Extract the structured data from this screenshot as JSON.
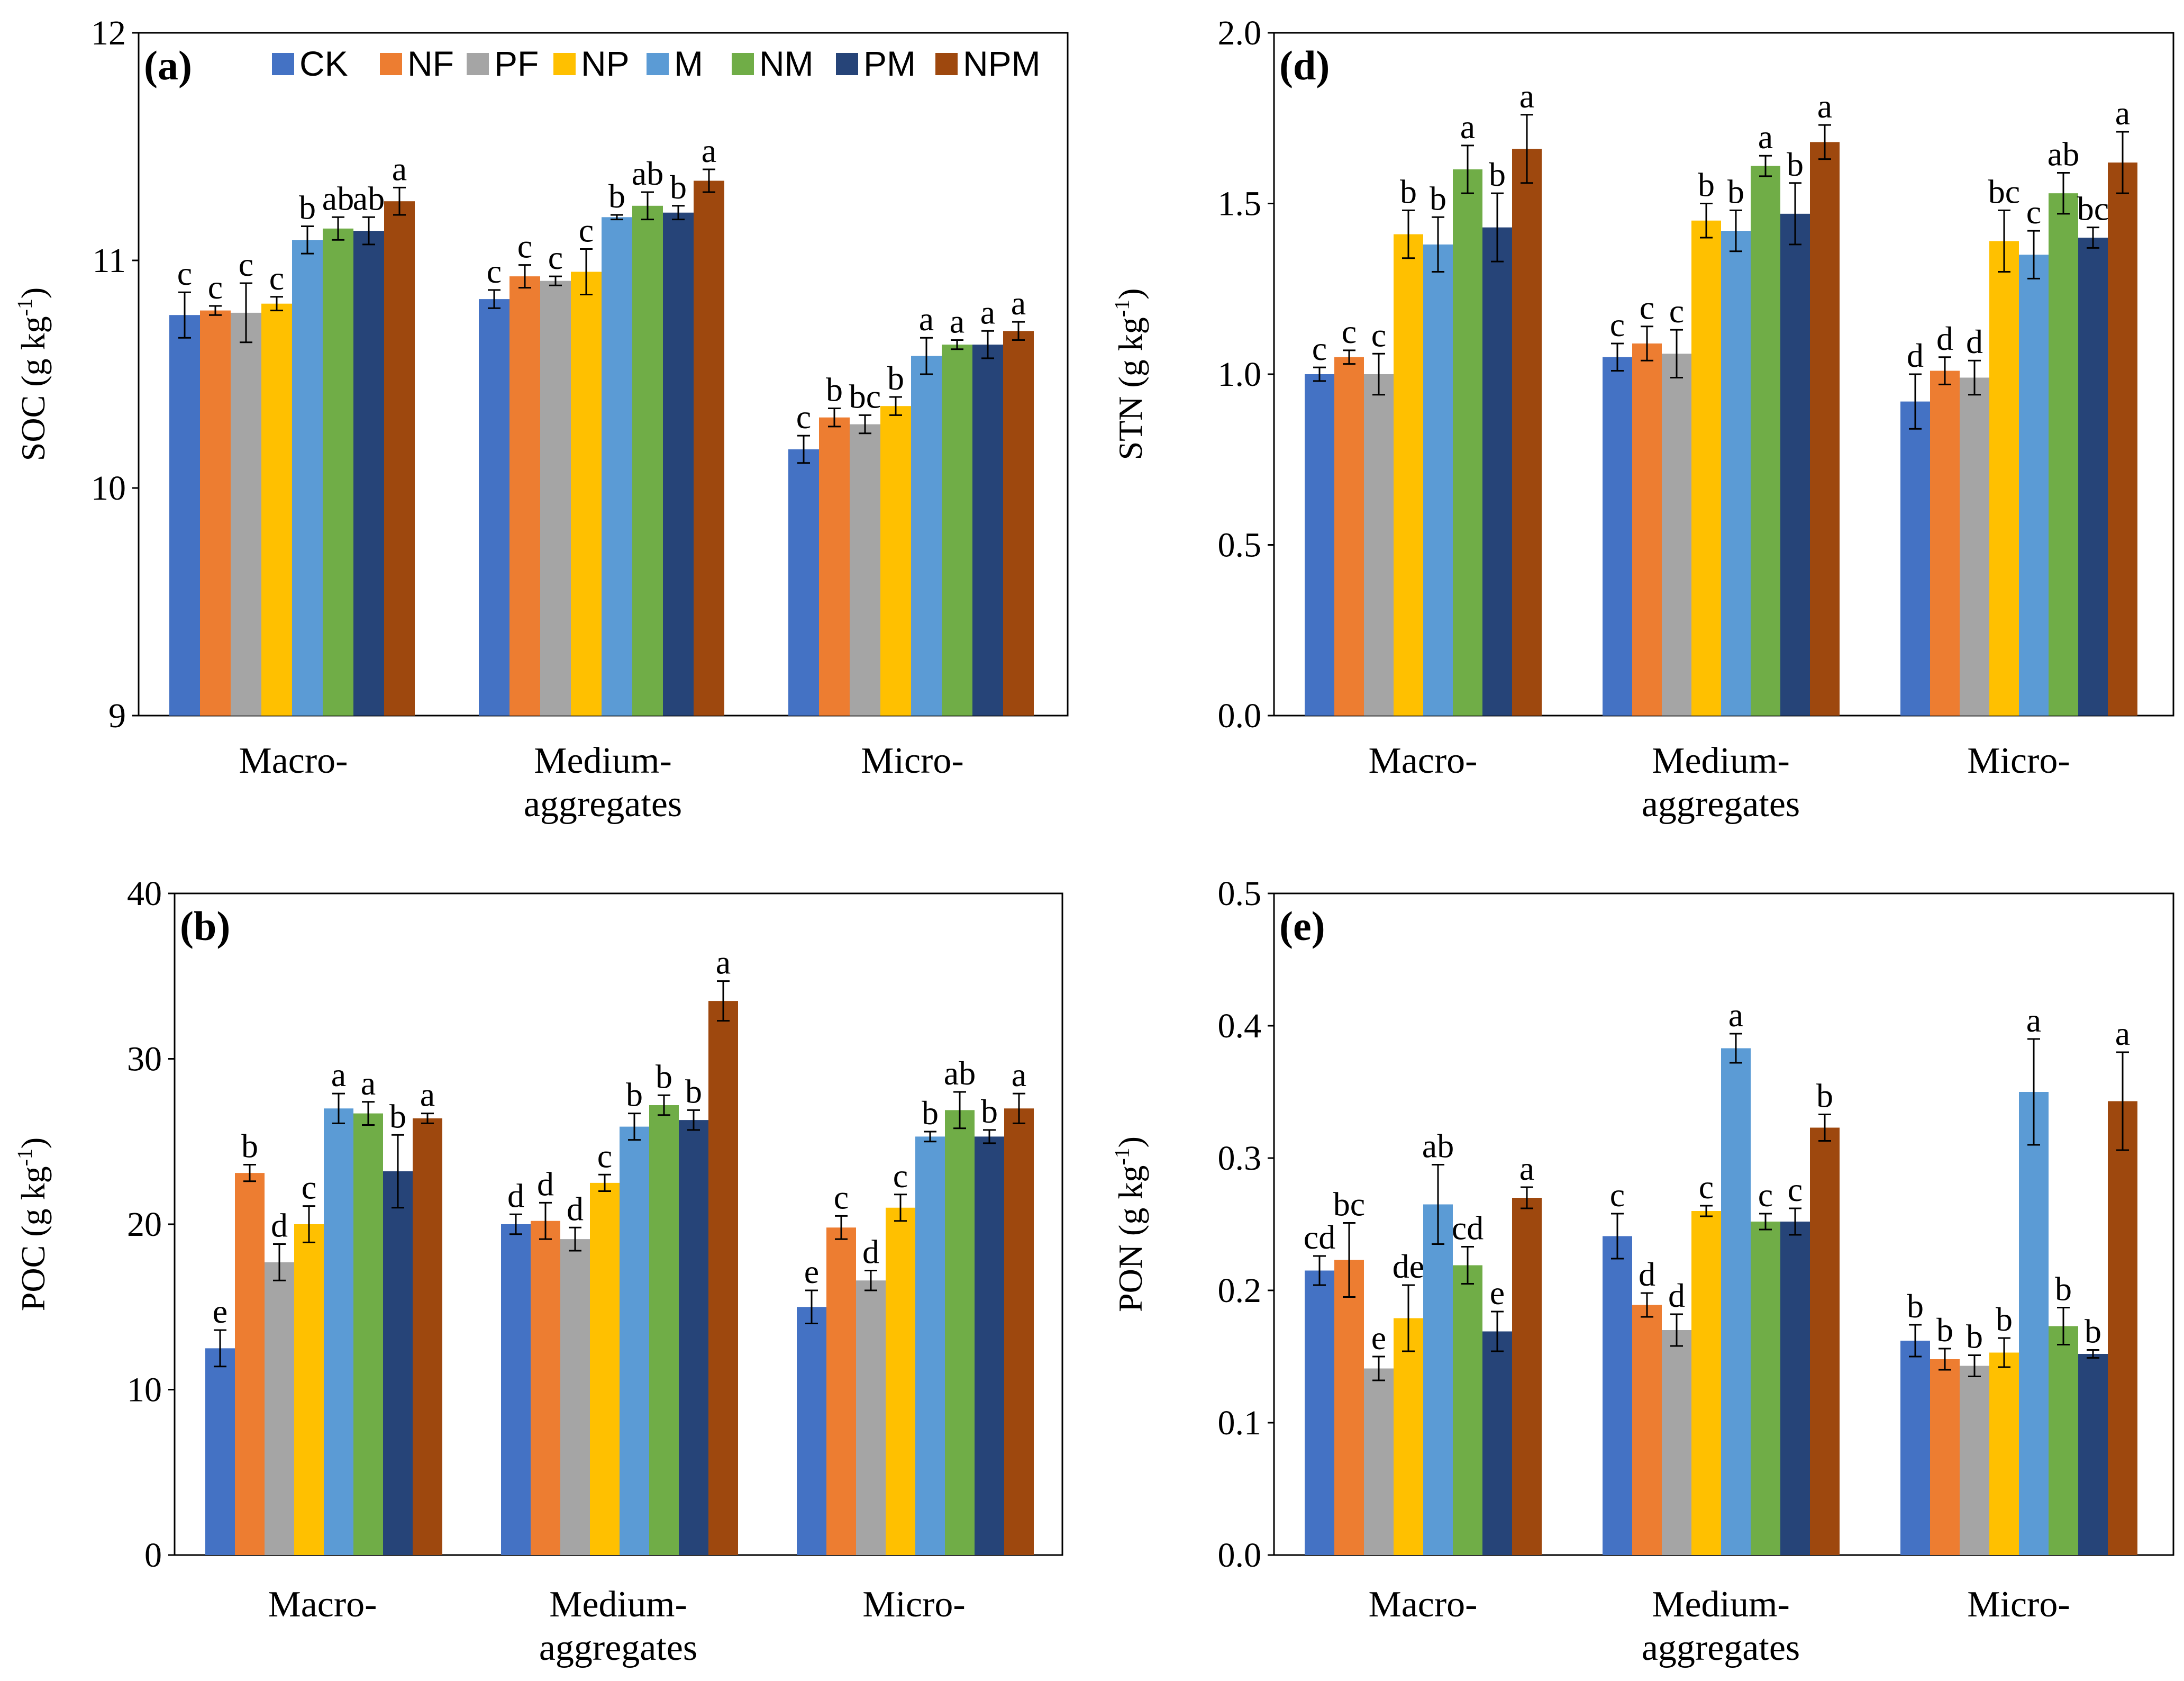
{
  "legend": [
    {
      "name": "CK",
      "color": "#4472C4"
    },
    {
      "name": "NF",
      "color": "#ED7D31"
    },
    {
      "name": "PF",
      "color": "#A5A5A5"
    },
    {
      "name": "NP",
      "color": "#FFC000"
    },
    {
      "name": "M",
      "color": "#5B9BD5"
    },
    {
      "name": "NM",
      "color": "#70AD47"
    },
    {
      "name": "PM",
      "color": "#264478"
    },
    {
      "name": "NPM",
      "color": "#9E480E"
    }
  ],
  "chart_data": [
    {
      "id": "a",
      "tag": "(a)",
      "type": "bar",
      "ylabel": "SOC (g kg",
      "ylabel_sup": "-1",
      "ylabel_end": ")",
      "ylim": [
        9,
        12
      ],
      "yticks": [
        "9",
        "10",
        "11",
        "12"
      ],
      "ytick_values": [
        9,
        10,
        11,
        12
      ],
      "categories": [
        [
          "Macro-"
        ],
        [
          "Medium-",
          "aggregates"
        ],
        [
          "Micro-"
        ]
      ],
      "series_names": [
        "CK",
        "NF",
        "PF",
        "NP",
        "M",
        "NM",
        "PM",
        "NPM"
      ],
      "values": [
        [
          10.76,
          10.78,
          10.77,
          10.81,
          11.09,
          11.14,
          11.13,
          11.26
        ],
        [
          10.83,
          10.93,
          10.91,
          10.95,
          11.19,
          11.24,
          11.21,
          11.35
        ],
        [
          10.17,
          10.31,
          10.28,
          10.36,
          10.58,
          10.63,
          10.63,
          10.69
        ]
      ],
      "errors": [
        [
          0.1,
          0.02,
          0.13,
          0.03,
          0.06,
          0.05,
          0.06,
          0.06
        ],
        [
          0.04,
          0.05,
          0.02,
          0.1,
          0.01,
          0.06,
          0.03,
          0.05
        ],
        [
          0.06,
          0.04,
          0.04,
          0.04,
          0.08,
          0.02,
          0.06,
          0.04
        ]
      ],
      "letters": [
        [
          "c",
          "c",
          "c",
          "c",
          "b",
          "ab",
          "ab",
          "a"
        ],
        [
          "c",
          "c",
          "c",
          "c",
          "b",
          "ab",
          "b",
          "a"
        ],
        [
          "c",
          "b",
          "bc",
          "b",
          "a",
          "a",
          "a",
          "a"
        ]
      ]
    },
    {
      "id": "d",
      "tag": "(d)",
      "type": "bar",
      "ylabel": "STN (g kg",
      "ylabel_sup": "-1",
      "ylabel_end": ")",
      "ylim": [
        0,
        2
      ],
      "yticks": [
        "0.0",
        "0.5",
        "1.0",
        "1.5",
        "2.0"
      ],
      "ytick_values": [
        0,
        0.5,
        1.0,
        1.5,
        2.0
      ],
      "categories": [
        [
          "Macro-"
        ],
        [
          "Medium-",
          "aggregates"
        ],
        [
          "Micro-"
        ]
      ],
      "series_names": [
        "CK",
        "NF",
        "PF",
        "NP",
        "M",
        "NM",
        "PM",
        "NPM"
      ],
      "values": [
        [
          1.0,
          1.05,
          1.0,
          1.41,
          1.38,
          1.6,
          1.43,
          1.66
        ],
        [
          1.05,
          1.09,
          1.06,
          1.45,
          1.42,
          1.61,
          1.47,
          1.68
        ],
        [
          0.92,
          1.01,
          0.99,
          1.39,
          1.35,
          1.53,
          1.4,
          1.62
        ]
      ],
      "errors": [
        [
          0.02,
          0.02,
          0.06,
          0.07,
          0.08,
          0.07,
          0.1,
          0.1
        ],
        [
          0.04,
          0.05,
          0.07,
          0.05,
          0.06,
          0.03,
          0.09,
          0.05
        ],
        [
          0.08,
          0.04,
          0.05,
          0.09,
          0.07,
          0.06,
          0.03,
          0.09
        ]
      ],
      "letters": [
        [
          "c",
          "c",
          "c",
          "b",
          "b",
          "a",
          "b",
          "a"
        ],
        [
          "c",
          "c",
          "c",
          "b",
          "b",
          "a",
          "b",
          "a"
        ],
        [
          "d",
          "d",
          "d",
          "bc",
          "c",
          "ab",
          "bc",
          "a"
        ]
      ]
    },
    {
      "id": "b",
      "tag": "(b)",
      "type": "bar",
      "ylabel": "POC (g kg",
      "ylabel_sup": "-1",
      "ylabel_end": ")",
      "ylim": [
        0,
        40
      ],
      "yticks": [
        "0",
        "10",
        "20",
        "30",
        "40"
      ],
      "ytick_values": [
        0,
        10,
        20,
        30,
        40
      ],
      "categories": [
        [
          "Macro-"
        ],
        [
          "Medium-",
          "aggregates"
        ],
        [
          "Micro-"
        ]
      ],
      "series_names": [
        "CK",
        "NF",
        "PF",
        "NP",
        "M",
        "NM",
        "PM",
        "NPM"
      ],
      "values": [
        [
          12.5,
          23.1,
          17.7,
          20.0,
          27.0,
          26.7,
          23.2,
          26.4
        ],
        [
          20.0,
          20.2,
          19.1,
          22.5,
          25.9,
          27.2,
          26.3,
          33.5
        ],
        [
          15.0,
          19.8,
          16.6,
          21.0,
          25.3,
          26.9,
          25.3,
          27.0
        ]
      ],
      "errors": [
        [
          1.1,
          0.5,
          1.1,
          1.1,
          0.9,
          0.7,
          2.2,
          0.3
        ],
        [
          0.6,
          1.1,
          0.7,
          0.5,
          0.8,
          0.6,
          0.6,
          1.2
        ],
        [
          1.0,
          0.7,
          0.6,
          0.8,
          0.3,
          1.1,
          0.4,
          0.9
        ]
      ],
      "letters": [
        [
          "e",
          "b",
          "d",
          "c",
          "a",
          "a",
          "b",
          "a"
        ],
        [
          "d",
          "d",
          "d",
          "c",
          "b",
          "b",
          "b",
          "a"
        ],
        [
          "e",
          "c",
          "d",
          "c",
          "b",
          "ab",
          "b",
          "a"
        ]
      ]
    },
    {
      "id": "e",
      "tag": "(e)",
      "type": "bar",
      "ylabel": "PON (g kg",
      "ylabel_sup": "-1",
      "ylabel_end": ")",
      "ylim": [
        0,
        0.5
      ],
      "yticks": [
        "0.0",
        "0.1",
        "0.2",
        "0.3",
        "0.4",
        "0.5"
      ],
      "ytick_values": [
        0,
        0.1,
        0.2,
        0.3,
        0.4,
        0.5
      ],
      "categories": [
        [
          "Macro-"
        ],
        [
          "Medium-",
          "aggregates"
        ],
        [
          "Micro-"
        ]
      ],
      "series_names": [
        "CK",
        "NF",
        "PF",
        "NP",
        "M",
        "NM",
        "PM",
        "NPM"
      ],
      "values": [
        [
          0.215,
          0.223,
          0.141,
          0.179,
          0.265,
          0.219,
          0.169,
          0.27
        ],
        [
          0.241,
          0.189,
          0.17,
          0.26,
          0.383,
          0.252,
          0.252,
          0.323
        ],
        [
          0.162,
          0.148,
          0.143,
          0.153,
          0.35,
          0.173,
          0.152,
          0.343
        ]
      ],
      "errors": [
        [
          0.011,
          0.028,
          0.009,
          0.025,
          0.03,
          0.014,
          0.015,
          0.008
        ],
        [
          0.017,
          0.009,
          0.012,
          0.004,
          0.011,
          0.006,
          0.01,
          0.01
        ],
        [
          0.012,
          0.008,
          0.008,
          0.011,
          0.04,
          0.014,
          0.003,
          0.037
        ]
      ],
      "letters": [
        [
          "cd",
          "bc",
          "e",
          "de",
          "ab",
          "cd",
          "e",
          "a"
        ],
        [
          "c",
          "d",
          "d",
          "c",
          "a",
          "c",
          "c",
          "b"
        ],
        [
          "b",
          "b",
          "b",
          "b",
          "a",
          "b",
          "b",
          "a"
        ]
      ]
    }
  ]
}
